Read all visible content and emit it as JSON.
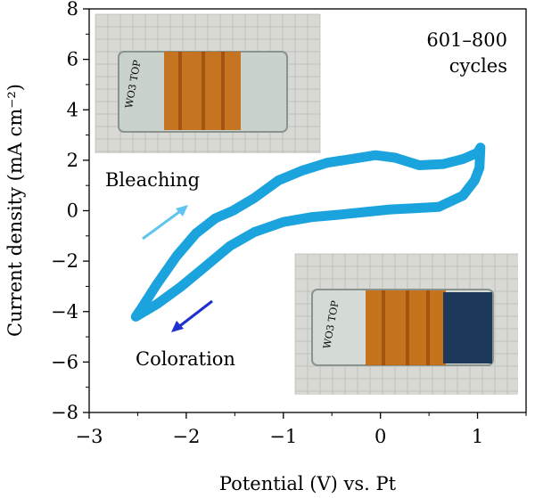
{
  "chart_data": {
    "type": "scatter",
    "title": "",
    "xlabel": "Potential (V) vs. Pt",
    "ylabel": "Current density (mA cm⁻²)",
    "xlim": [
      -3,
      1.5
    ],
    "ylim": [
      -8,
      8
    ],
    "xticks": [
      -3,
      -2,
      -1,
      0,
      1
    ],
    "yticks": [
      -8,
      -6,
      -4,
      -2,
      0,
      2,
      4,
      6,
      8
    ],
    "xtick_labels": [
      "−3",
      "−2",
      "−1",
      "0",
      "1"
    ],
    "ytick_labels": [
      "−8",
      "−6",
      "−4",
      "−2",
      "0",
      "2",
      "4",
      "6",
      "8"
    ],
    "grid": false,
    "series_color": "#1ba3dd",
    "series": [
      {
        "name": "",
        "x": [
          -2.52,
          -2.45,
          -2.3,
          -2.1,
          -1.9,
          -1.7,
          -1.52,
          -1.3,
          -1.05,
          -0.8,
          -0.55,
          -0.3,
          -0.05,
          0.15,
          0.4,
          0.65,
          0.85,
          1.0,
          1.03,
          1.02,
          0.97,
          0.85,
          0.6,
          0.35,
          0.1,
          -0.15,
          -0.4,
          -0.7,
          -1.0,
          -1.3,
          -1.55,
          -1.8,
          -2.05,
          -2.3,
          -2.52
        ],
        "y": [
          -4.2,
          -3.8,
          -2.9,
          -1.8,
          -0.9,
          -0.3,
          0.0,
          0.5,
          1.2,
          1.6,
          1.9,
          2.05,
          2.2,
          2.1,
          1.8,
          1.85,
          2.05,
          2.3,
          2.5,
          1.7,
          1.2,
          0.6,
          0.15,
          0.1,
          0.05,
          -0.05,
          -0.15,
          -0.25,
          -0.45,
          -0.85,
          -1.4,
          -2.2,
          -3.0,
          -3.7,
          -4.2
        ]
      }
    ],
    "annotations": {
      "cycles_line1": "601–800",
      "cycles_line2": "cycles",
      "bleaching": "Bleaching",
      "coloration": "Coloration"
    },
    "arrow_colors": {
      "bleaching": "#5fc4ee",
      "coloration": "#1f2fd0"
    },
    "photo_insets": [
      {
        "state": "bleached",
        "film_color": "#c9d2cc",
        "label": "WO3 TOP"
      },
      {
        "state": "colored",
        "film_color": "#1d3a5c",
        "label": "WO3 TOP"
      }
    ]
  }
}
